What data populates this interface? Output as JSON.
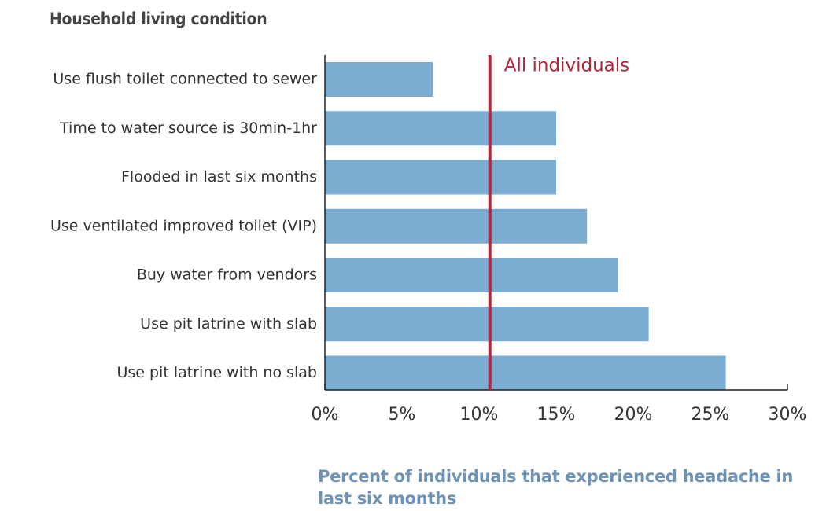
{
  "chart_data": {
    "type": "bar",
    "orientation": "horizontal",
    "title": "Household living condition",
    "x_label": "Percent of individuals that experienced headache in last six months",
    "categories": [
      "Use flush toilet connected to sewer",
      "Time to water source is 30min-1hr",
      "Flooded in last six months",
      "Use ventilated improved toilet (VIP)",
      "Buy water from vendors",
      "Use pit latrine with slab",
      "Use pit latrine with no slab"
    ],
    "values": [
      7,
      15,
      15,
      17,
      19,
      21,
      26
    ],
    "color": "#7badd3",
    "xlim": [
      0,
      30
    ],
    "xticks": [
      {
        "value": 0,
        "label": "0%"
      },
      {
        "value": 5,
        "label": "5%"
      },
      {
        "value": 10,
        "label": "10%"
      },
      {
        "value": 15,
        "label": "15%"
      },
      {
        "value": 20,
        "label": "20%"
      },
      {
        "value": 25,
        "label": "25%"
      },
      {
        "value": 30,
        "label": "30%"
      }
    ],
    "reference_line": {
      "value": 10.7,
      "label": "All individuals",
      "color": "#b5243a"
    }
  }
}
